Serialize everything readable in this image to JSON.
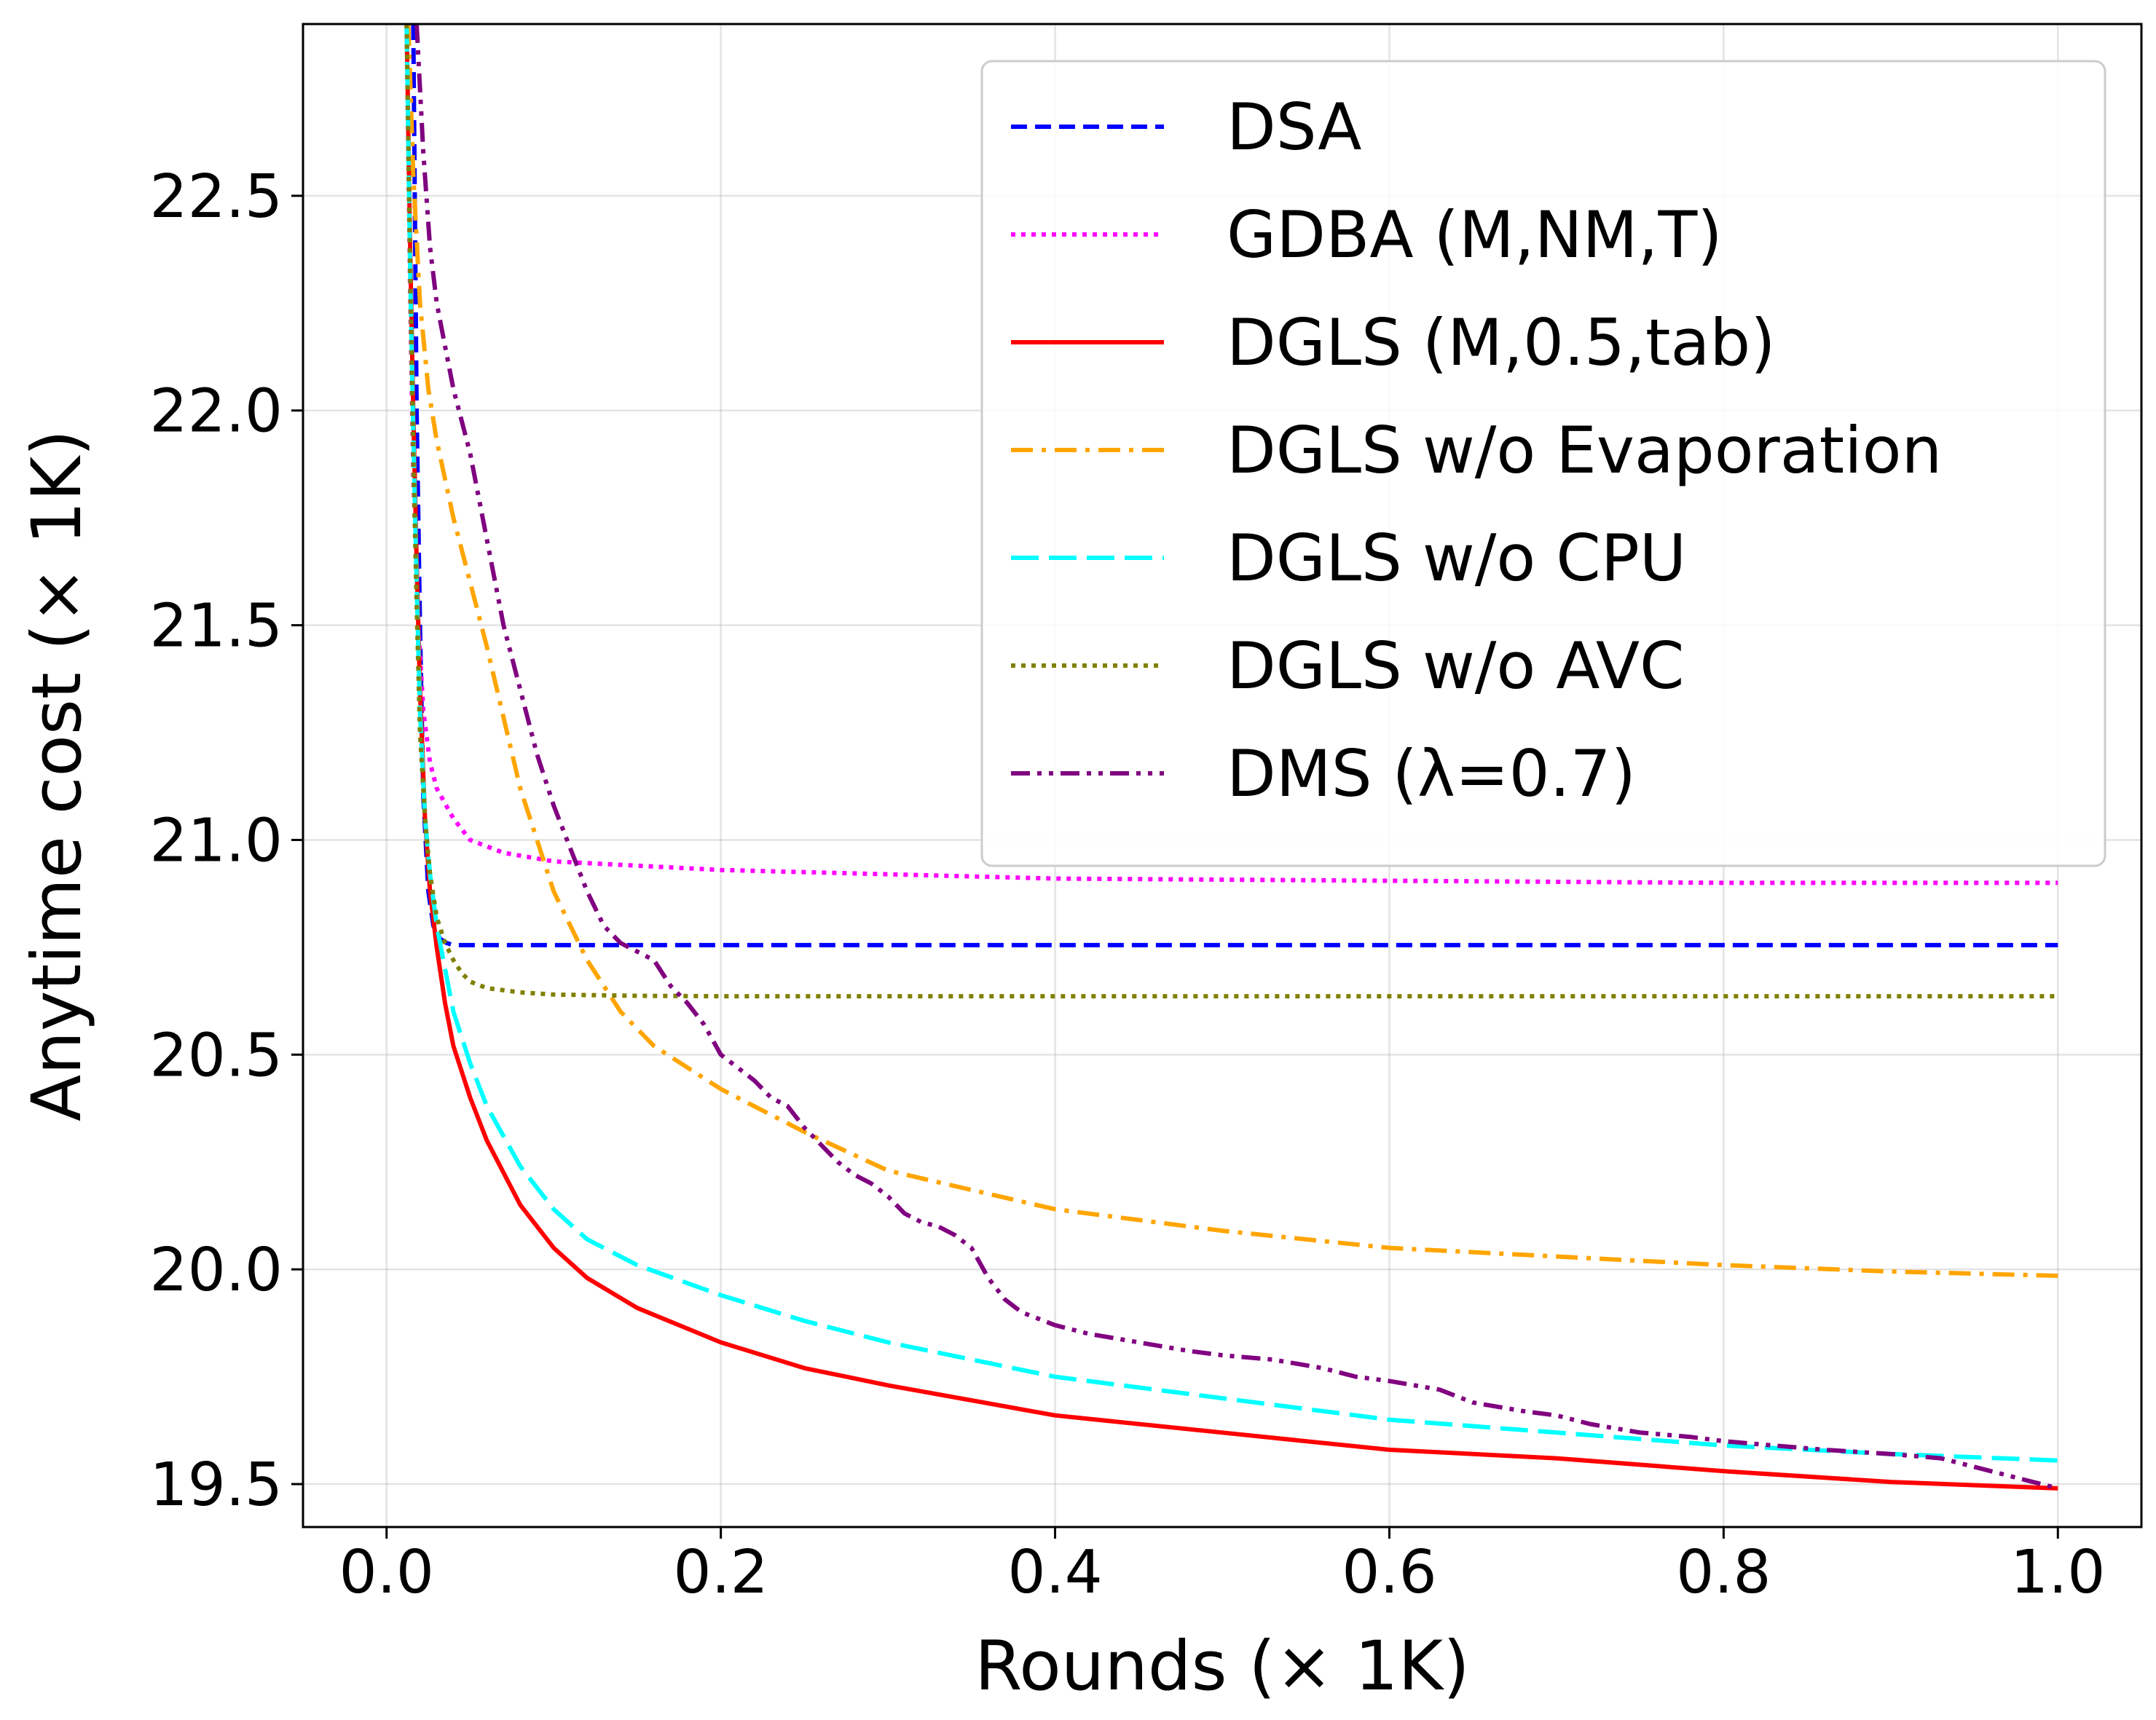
{
  "chart_data": {
    "type": "line",
    "xlabel": "Rounds (× 1K)",
    "ylabel": "Anytime cost (× 1K)",
    "xlim": [
      -0.05,
      1.05
    ],
    "ylim": [
      19.4,
      22.9
    ],
    "xticks": [
      0.0,
      0.2,
      0.4,
      0.6,
      0.8,
      1.0
    ],
    "xtick_labels": [
      "0.0",
      "0.2",
      "0.4",
      "0.6",
      "0.8",
      "1.0"
    ],
    "yticks": [
      19.5,
      20.0,
      20.5,
      21.0,
      21.5,
      22.0,
      22.5
    ],
    "ytick_labels": [
      "19.5",
      "20.0",
      "20.5",
      "21.0",
      "21.5",
      "22.0",
      "22.5"
    ],
    "grid": true,
    "legend_position": "top-right",
    "series": [
      {
        "name": "DSA",
        "color": "#0000ff",
        "style": "dashed",
        "x": [
          0.016,
          0.018,
          0.02,
          0.022,
          0.025,
          0.028,
          0.032,
          0.036,
          0.04,
          0.05,
          0.1,
          0.2,
          0.4,
          0.6,
          0.8,
          1.0
        ],
        "y": [
          22.9,
          22.0,
          21.5,
          21.1,
          20.88,
          20.8,
          20.77,
          20.76,
          20.755,
          20.755,
          20.755,
          20.755,
          20.755,
          20.755,
          20.755,
          20.755
        ]
      },
      {
        "name": "GDBA (M,NM,T)",
        "color": "#ff00ff",
        "style": "dotted",
        "x": [
          0.012,
          0.014,
          0.016,
          0.019,
          0.022,
          0.026,
          0.03,
          0.04,
          0.05,
          0.07,
          0.1,
          0.15,
          0.2,
          0.3,
          0.4,
          0.6,
          0.8,
          1.0
        ],
        "y": [
          22.9,
          22.3,
          21.85,
          21.5,
          21.3,
          21.18,
          21.12,
          21.05,
          21.0,
          20.97,
          20.95,
          20.94,
          20.93,
          20.92,
          20.91,
          20.905,
          20.9,
          20.9
        ]
      },
      {
        "name": "DGLS (M,0.5,tab)",
        "color": "#ff0000",
        "style": "solid",
        "x": [
          0.012,
          0.014,
          0.016,
          0.018,
          0.02,
          0.023,
          0.026,
          0.03,
          0.035,
          0.04,
          0.05,
          0.06,
          0.08,
          0.1,
          0.12,
          0.15,
          0.2,
          0.25,
          0.3,
          0.4,
          0.5,
          0.6,
          0.7,
          0.8,
          0.9,
          1.0
        ],
        "y": [
          22.9,
          22.4,
          22.0,
          21.65,
          21.35,
          21.05,
          20.88,
          20.75,
          20.62,
          20.52,
          20.4,
          20.3,
          20.15,
          20.05,
          19.98,
          19.91,
          19.83,
          19.77,
          19.73,
          19.66,
          19.62,
          19.58,
          19.56,
          19.53,
          19.505,
          19.49
        ]
      },
      {
        "name": "DGLS w/o Evaporation",
        "color": "#ffa500",
        "style": "dashdot",
        "x": [
          0.013,
          0.016,
          0.02,
          0.025,
          0.03,
          0.04,
          0.05,
          0.06,
          0.08,
          0.1,
          0.12,
          0.14,
          0.16,
          0.2,
          0.25,
          0.3,
          0.4,
          0.5,
          0.6,
          0.7,
          0.8,
          0.9,
          1.0
        ],
        "y": [
          22.9,
          22.55,
          22.25,
          22.05,
          21.93,
          21.75,
          21.6,
          21.45,
          21.12,
          20.88,
          20.72,
          20.6,
          20.52,
          20.42,
          20.32,
          20.23,
          20.14,
          20.09,
          20.05,
          20.03,
          20.01,
          19.995,
          19.985
        ]
      },
      {
        "name": "DGLS w/o CPU",
        "color": "#00ffff",
        "style": "longdash",
        "x": [
          0.012,
          0.014,
          0.016,
          0.018,
          0.02,
          0.023,
          0.026,
          0.03,
          0.035,
          0.04,
          0.05,
          0.06,
          0.08,
          0.1,
          0.12,
          0.15,
          0.2,
          0.25,
          0.3,
          0.4,
          0.5,
          0.6,
          0.7,
          0.8,
          0.9,
          1.0
        ],
        "y": [
          22.9,
          22.35,
          21.95,
          21.6,
          21.3,
          21.05,
          20.92,
          20.8,
          20.7,
          20.6,
          20.48,
          20.38,
          20.24,
          20.14,
          20.07,
          20.01,
          19.94,
          19.88,
          19.83,
          19.75,
          19.7,
          19.65,
          19.62,
          19.59,
          19.57,
          19.555
        ]
      },
      {
        "name": "DGLS w/o AVC",
        "color": "#808000",
        "style": "dotted",
        "x": [
          0.012,
          0.014,
          0.016,
          0.018,
          0.02,
          0.023,
          0.026,
          0.03,
          0.035,
          0.04,
          0.045,
          0.05,
          0.06,
          0.08,
          0.1,
          0.15,
          0.2,
          0.4,
          0.6,
          0.8,
          1.0
        ],
        "y": [
          22.9,
          22.35,
          21.9,
          21.55,
          21.25,
          21.05,
          20.92,
          20.82,
          20.76,
          20.72,
          20.69,
          20.67,
          20.655,
          20.645,
          20.64,
          20.637,
          20.636,
          20.636,
          20.636,
          20.636,
          20.636
        ]
      },
      {
        "name": "DMS (λ=0.7)",
        "color": "#800080",
        "style": "dashdotdot",
        "x": [
          0.018,
          0.022,
          0.026,
          0.03,
          0.035,
          0.04,
          0.05,
          0.06,
          0.07,
          0.08,
          0.09,
          0.1,
          0.11,
          0.12,
          0.13,
          0.14,
          0.15,
          0.16,
          0.17,
          0.18,
          0.19,
          0.2,
          0.21,
          0.22,
          0.23,
          0.24,
          0.25,
          0.26,
          0.27,
          0.28,
          0.29,
          0.3,
          0.31,
          0.32,
          0.33,
          0.34,
          0.35,
          0.36,
          0.37,
          0.38,
          0.4,
          0.42,
          0.45,
          0.48,
          0.5,
          0.53,
          0.56,
          0.58,
          0.6,
          0.63,
          0.65,
          0.68,
          0.7,
          0.72,
          0.75,
          0.78,
          0.8,
          0.83,
          0.86,
          0.9,
          0.93,
          0.96,
          0.98,
          1.0
        ],
        "y": [
          22.9,
          22.6,
          22.38,
          22.25,
          22.15,
          22.05,
          21.9,
          21.7,
          21.5,
          21.35,
          21.2,
          21.08,
          20.98,
          20.88,
          20.8,
          20.76,
          20.74,
          20.72,
          20.66,
          20.62,
          20.57,
          20.5,
          20.47,
          20.44,
          20.4,
          20.38,
          20.33,
          20.29,
          20.25,
          20.22,
          20.2,
          20.17,
          20.13,
          20.11,
          20.1,
          20.08,
          20.05,
          19.98,
          19.93,
          19.9,
          19.87,
          19.85,
          19.83,
          19.81,
          19.8,
          19.79,
          19.77,
          19.75,
          19.74,
          19.72,
          19.69,
          19.67,
          19.66,
          19.64,
          19.62,
          19.61,
          19.6,
          19.59,
          19.58,
          19.57,
          19.56,
          19.53,
          19.51,
          19.49
        ]
      }
    ]
  }
}
